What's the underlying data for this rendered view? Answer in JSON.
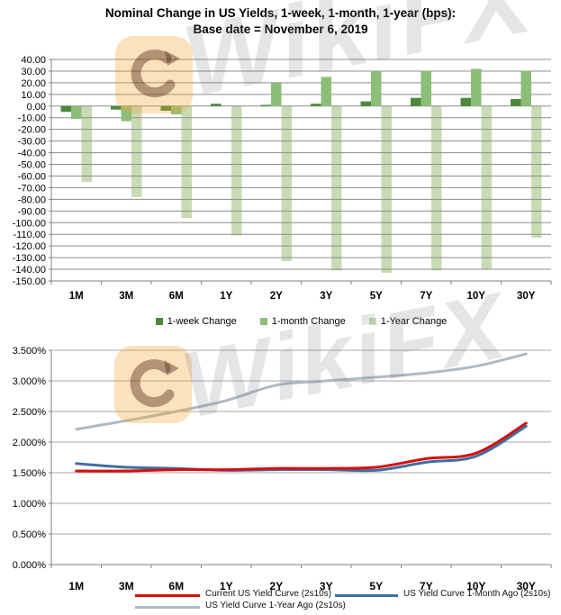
{
  "watermark": {
    "brand": "WikiFX"
  },
  "chart_data": [
    {
      "type": "bar",
      "title": "Nominal Change in US Yields, 1-week, 1-month, 1-year (bps):",
      "subtitle": "Base date = November 6, 2019",
      "categories": [
        "1M",
        "3M",
        "6M",
        "1Y",
        "2Y",
        "3Y",
        "5Y",
        "7Y",
        "10Y",
        "30Y"
      ],
      "series": [
        {
          "name": "1-week Change",
          "color": "#4A8A3A",
          "values": [
            -5,
            -3,
            -4,
            2,
            1,
            2,
            4,
            7,
            7,
            6
          ]
        },
        {
          "name": "1-month Change",
          "color": "#8CBE78",
          "values": [
            -11,
            -13,
            -7,
            0,
            20,
            25,
            30,
            30,
            32,
            30
          ]
        },
        {
          "name": "1-Year Change",
          "color": "#C8DBB5",
          "values": [
            -65,
            -78,
            -96,
            -111,
            -133,
            -141,
            -143,
            -141,
            -140,
            -113
          ]
        }
      ],
      "ylim": [
        -150,
        40
      ],
      "ytick_step": 10,
      "yticks": [
        "40.00",
        "30.00",
        "20.00",
        "10.00",
        "0.00",
        "-10.00",
        "-20.00",
        "-30.00",
        "-40.00",
        "-50.00",
        "-60.00",
        "-70.00",
        "-80.00",
        "-90.00",
        "-100.00",
        "-110.00",
        "-120.00",
        "-130.00",
        "-140.00",
        "-150.00"
      ],
      "grid": true,
      "legend_position": "bottom"
    },
    {
      "type": "line",
      "title": "",
      "categories": [
        "1M",
        "3M",
        "6M",
        "1Y",
        "2Y",
        "3Y",
        "5Y",
        "7Y",
        "10Y",
        "30Y"
      ],
      "series": [
        {
          "name": "Current US Yield Curve (2s10s)",
          "color": "#D40F0F",
          "values": [
            1.53,
            1.53,
            1.55,
            1.55,
            1.57,
            1.57,
            1.59,
            1.73,
            1.82,
            2.31
          ]
        },
        {
          "name": "US Yield Curve 1-Month Ago (2s10s)",
          "color": "#3F6F9F",
          "values": [
            1.65,
            1.59,
            1.57,
            1.54,
            1.55,
            1.55,
            1.54,
            1.67,
            1.77,
            2.26
          ]
        },
        {
          "name": "US Yield Curve 1-Year Ago (2s10s)",
          "color": "#AFB9C3",
          "values": [
            2.21,
            2.35,
            2.5,
            2.68,
            2.93,
            3.0,
            3.06,
            3.13,
            3.24,
            3.44
          ]
        }
      ],
      "ylim": [
        0,
        3.5
      ],
      "ytick_step": 0.5,
      "yticks": [
        "3.500%",
        "3.000%",
        "2.500%",
        "2.000%",
        "1.500%",
        "1.000%",
        "0.500%",
        "0.000%"
      ],
      "grid": true,
      "legend_position": "bottom"
    }
  ]
}
